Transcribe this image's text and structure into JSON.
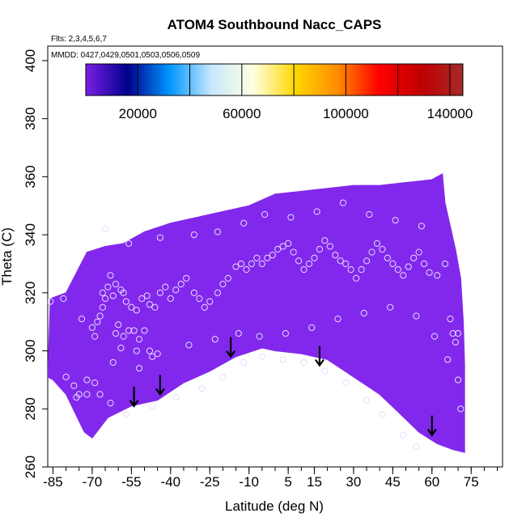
{
  "chart_data": {
    "type": "scatter",
    "title": "ATOM4 Southbound Nacc_CAPS",
    "flights_note": "Flts: 2,3,4,5,6,7",
    "dates_note": "MMDD: 0427,0429,0501,0503,0506,0509",
    "xlabel": "Latitude (deg N)",
    "ylabel": "Theta (C)",
    "xlim": [
      -87,
      87
    ],
    "ylim": [
      260,
      405
    ],
    "x_ticks": [
      -85,
      -70,
      -55,
      -40,
      -25,
      -10,
      5,
      15,
      30,
      45,
      60,
      75
    ],
    "x_tick_labels": [
      "-85",
      "-70",
      "-55",
      "-40",
      "-25",
      "-10",
      "5",
      "15",
      "30",
      "45",
      "60",
      "75"
    ],
    "x_minor_step": 5,
    "y_ticks": [
      260,
      280,
      300,
      320,
      340,
      360,
      380,
      400
    ],
    "y_tick_labels": [
      "260",
      "280",
      "300",
      "320",
      "340",
      "360",
      "380",
      "400"
    ],
    "colorbar": {
      "range": [
        0,
        145000
      ],
      "ticks": [
        20000,
        60000,
        100000,
        140000
      ],
      "tick_labels": [
        "20000",
        "60000",
        "100000",
        "140000"
      ],
      "stops": [
        "#7a1fe6",
        "#00008b",
        "#0096ff",
        "#c8e8ff",
        "#ffffe0",
        "#ffd700",
        "#ff8c00",
        "#ff0000",
        "#c00000",
        "#a52a2a"
      ]
    },
    "field_color": "#8228ec",
    "field_value": 0,
    "field_top": [
      [
        -87,
        291
      ],
      [
        -86,
        318
      ],
      [
        -80,
        320
      ],
      [
        -72,
        334
      ],
      [
        -65,
        336
      ],
      [
        -58,
        337
      ],
      [
        -50,
        341
      ],
      [
        -40,
        344
      ],
      [
        -30,
        346
      ],
      [
        -20,
        348
      ],
      [
        -10,
        350
      ],
      [
        0,
        354
      ],
      [
        10,
        355
      ],
      [
        20,
        356
      ],
      [
        30,
        357
      ],
      [
        40,
        357
      ],
      [
        50,
        358
      ],
      [
        60,
        359
      ],
      [
        64,
        361
      ],
      [
        65,
        351
      ],
      [
        67,
        343
      ],
      [
        69,
        335
      ],
      [
        71,
        325
      ],
      [
        72,
        310
      ],
      [
        72.5,
        295
      ]
    ],
    "field_bottom": [
      [
        -87,
        291
      ],
      [
        -85,
        290
      ],
      [
        -80,
        285
      ],
      [
        -73,
        272
      ],
      [
        -70,
        270
      ],
      [
        -64,
        277
      ],
      [
        -55,
        281
      ],
      [
        -45,
        283
      ],
      [
        -35,
        289
      ],
      [
        -25,
        293
      ],
      [
        -15,
        298
      ],
      [
        -5,
        301
      ],
      [
        0,
        300
      ],
      [
        10,
        299
      ],
      [
        20,
        297
      ],
      [
        30,
        291
      ],
      [
        40,
        285
      ],
      [
        47,
        279
      ],
      [
        55,
        272
      ],
      [
        62,
        268
      ],
      [
        68,
        266
      ],
      [
        72.5,
        265
      ]
    ],
    "arrows": [
      [
        -54,
        281
      ],
      [
        -44,
        285
      ],
      [
        -17,
        298
      ],
      [
        17,
        295
      ],
      [
        60,
        271
      ]
    ],
    "points": [
      [
        -86,
        317
      ],
      [
        -81,
        318
      ],
      [
        -80,
        291
      ],
      [
        -77,
        288
      ],
      [
        -75,
        285
      ],
      [
        -72,
        290
      ],
      [
        -69,
        289
      ],
      [
        -67,
        285
      ],
      [
        -66,
        320
      ],
      [
        -62,
        319
      ],
      [
        -61,
        306
      ],
      [
        -60,
        309
      ],
      [
        -59,
        301
      ],
      [
        -58,
        305
      ],
      [
        -56,
        307
      ],
      [
        -54,
        307
      ],
      [
        -53,
        300
      ],
      [
        -52,
        304
      ],
      [
        -50,
        307
      ],
      [
        -48,
        300
      ],
      [
        -47,
        298
      ],
      [
        -45,
        299
      ],
      [
        -70,
        308
      ],
      [
        -69,
        305
      ],
      [
        -68,
        310
      ],
      [
        -67,
        312
      ],
      [
        -66,
        315
      ],
      [
        -65,
        318
      ],
      [
        -64,
        322
      ],
      [
        -63,
        326
      ],
      [
        -61,
        323
      ],
      [
        -59,
        321
      ],
      [
        -58,
        320
      ],
      [
        -57,
        317
      ],
      [
        -55,
        315
      ],
      [
        -53,
        314
      ],
      [
        -51,
        318
      ],
      [
        -49,
        319
      ],
      [
        -48,
        316
      ],
      [
        -46,
        315
      ],
      [
        -44,
        320
      ],
      [
        -42,
        322
      ],
      [
        -40,
        318
      ],
      [
        -38,
        321
      ],
      [
        -36,
        323
      ],
      [
        -34,
        325
      ],
      [
        -31,
        320
      ],
      [
        -29,
        318
      ],
      [
        -27,
        315
      ],
      [
        -25,
        317
      ],
      [
        -22,
        320
      ],
      [
        -20,
        323
      ],
      [
        -18,
        325
      ],
      [
        -15,
        329
      ],
      [
        -13,
        330
      ],
      [
        -11,
        328
      ],
      [
        -9,
        330
      ],
      [
        -7,
        332
      ],
      [
        -5,
        330
      ],
      [
        -3,
        332
      ],
      [
        -1,
        333
      ],
      [
        1,
        335
      ],
      [
        3,
        336
      ],
      [
        5,
        337
      ],
      [
        7,
        334
      ],
      [
        9,
        331
      ],
      [
        11,
        328
      ],
      [
        13,
        330
      ],
      [
        15,
        332
      ],
      [
        17,
        335
      ],
      [
        19,
        338
      ],
      [
        21,
        336
      ],
      [
        23,
        333
      ],
      [
        25,
        331
      ],
      [
        27,
        330
      ],
      [
        29,
        328
      ],
      [
        31,
        325
      ],
      [
        33,
        328
      ],
      [
        35,
        331
      ],
      [
        37,
        334
      ],
      [
        39,
        337
      ],
      [
        41,
        335
      ],
      [
        43,
        332
      ],
      [
        45,
        330
      ],
      [
        47,
        328
      ],
      [
        49,
        326
      ],
      [
        51,
        329
      ],
      [
        53,
        332
      ],
      [
        55,
        334
      ],
      [
        57,
        330
      ],
      [
        59,
        327
      ],
      [
        62,
        326
      ],
      [
        65,
        330
      ],
      [
        67,
        311
      ],
      [
        68,
        306
      ],
      [
        69,
        303
      ],
      [
        70,
        306
      ],
      [
        -76,
        284
      ],
      [
        -72,
        285
      ],
      [
        -63,
        282
      ],
      [
        -57,
        278
      ],
      [
        -47,
        281
      ],
      [
        -38,
        284
      ],
      [
        -28,
        287
      ],
      [
        -20,
        291
      ],
      [
        -12,
        296
      ],
      [
        -5,
        298
      ],
      [
        3,
        297
      ],
      [
        11,
        296
      ],
      [
        19,
        293
      ],
      [
        27,
        289
      ],
      [
        35,
        283
      ],
      [
        41,
        278
      ],
      [
        49,
        271
      ],
      [
        54,
        267
      ],
      [
        -65,
        342
      ],
      [
        -56,
        337
      ],
      [
        -44,
        339
      ],
      [
        -31,
        340
      ],
      [
        -22,
        341
      ],
      [
        -12,
        344
      ],
      [
        -4,
        347
      ],
      [
        6,
        346
      ],
      [
        16,
        348
      ],
      [
        26,
        351
      ],
      [
        36,
        347
      ],
      [
        46,
        345
      ],
      [
        56,
        343
      ],
      [
        -74,
        311
      ],
      [
        -62,
        296
      ],
      [
        -52,
        294
      ],
      [
        -33,
        302
      ],
      [
        -23,
        304
      ],
      [
        -14,
        306
      ],
      [
        -6,
        305
      ],
      [
        4,
        306
      ],
      [
        14,
        308
      ],
      [
        24,
        311
      ],
      [
        34,
        313
      ],
      [
        44,
        315
      ],
      [
        54,
        312
      ],
      [
        61,
        305
      ],
      [
        66,
        297
      ],
      [
        70,
        290
      ],
      [
        71,
        280
      ]
    ]
  }
}
